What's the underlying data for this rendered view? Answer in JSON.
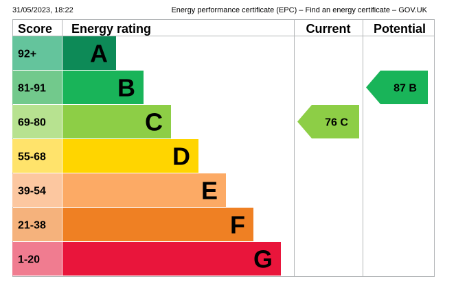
{
  "header": {
    "timestamp": "31/05/2023, 18:22",
    "page_title": "Energy performance certificate (EPC) – Find an energy certificate – GOV.UK"
  },
  "table_headers": {
    "score": "Score",
    "energy_rating": "Energy rating",
    "current": "Current",
    "potential": "Potential"
  },
  "chart_data": {
    "type": "bar",
    "title": "",
    "categories": [
      "A",
      "B",
      "C",
      "D",
      "E",
      "F",
      "G"
    ],
    "score_ranges": [
      "92+",
      "81-91",
      "69-80",
      "55-68",
      "39-54",
      "21-38",
      "1-20"
    ],
    "band_colors": [
      "#0d8a57",
      "#19b459",
      "#8dce46",
      "#ffd500",
      "#fcaa65",
      "#ef8023",
      "#e9153b"
    ],
    "score_cell_colors": [
      "#64c49c",
      "#72c98c",
      "#b7e290",
      "#ffe36b",
      "#fcc7a0",
      "#f5b27c",
      "#f07c90"
    ],
    "current": {
      "score": 76,
      "rating": "C",
      "label": "76  C",
      "color": "#8dce46"
    },
    "potential": {
      "score": 87,
      "rating": "B",
      "label": "87  B",
      "color": "#19b459"
    }
  }
}
